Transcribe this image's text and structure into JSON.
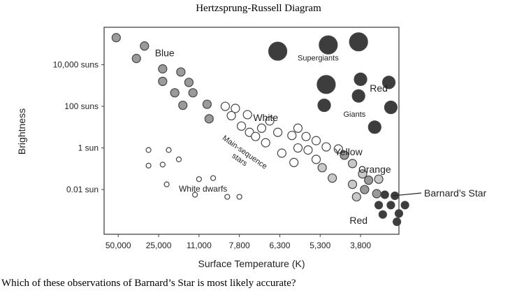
{
  "chart_data": {
    "type": "scatter",
    "title": "Hertzsprung-Russell Diagram",
    "xlabel": "Surface Temperature (K)",
    "ylabel": "Brightness",
    "x_ticks": [
      "50,000",
      "25,000",
      "11,000",
      "7,800",
      "6,300",
      "5,300",
      "3,800"
    ],
    "y_ticks": [
      "10,000 suns",
      "100 suns",
      "1 sun",
      "0.01 sun"
    ],
    "y_log_values": [
      4,
      2,
      0,
      -2
    ],
    "x_range_tick_index": [
      -0.35,
      6.95
    ],
    "y_range_log": [
      -4.15,
      5.8
    ],
    "grid": false,
    "shading_legend": {
      "white": "#ffffff",
      "light_gray": "#c8c8c8",
      "gray": "#9a9a9a",
      "dark": "#3d3d3d",
      "outline": "#444444"
    },
    "annotations": [
      {
        "text": "Blue",
        "tx": 1.15,
        "ly": 4.4,
        "size": 14
      },
      {
        "text": "Supergiants",
        "tx": 4.95,
        "ly": 4.2,
        "size": 11
      },
      {
        "text": "Red",
        "tx": 6.45,
        "ly": 2.7,
        "size": 14
      },
      {
        "text": "Giants",
        "tx": 5.85,
        "ly": 1.5,
        "size": 11
      },
      {
        "text": "White",
        "tx": 3.65,
        "ly": 1.3,
        "size": 14
      },
      {
        "text": "Yellow",
        "tx": 5.7,
        "ly": -0.35,
        "size": 14
      },
      {
        "text": "Orange",
        "tx": 6.35,
        "ly": -1.2,
        "size": 14
      },
      {
        "text": "White dwarfs",
        "tx": 2.1,
        "ly": -2.1,
        "size": 12
      },
      {
        "text": "Red",
        "tx": 5.95,
        "ly": -3.65,
        "size": 14
      }
    ],
    "rotated_annotations": [
      {
        "line1": "Main-sequence",
        "line2": "stars",
        "tx": 3.1,
        "ly": -0.3,
        "angle": 35,
        "size": 11
      }
    ],
    "callout": {
      "text": "Barnard’s Star",
      "target_tx": 6.7,
      "target_ly": -2.3
    },
    "series": [
      {
        "name": "Blue",
        "shade": "gray",
        "r": 6,
        "points": [
          [
            -0.05,
            5.3
          ],
          [
            0.65,
            4.9
          ],
          [
            0.45,
            4.3
          ],
          [
            1.1,
            3.8
          ],
          [
            1.55,
            3.65
          ],
          [
            1.1,
            3.2
          ],
          [
            1.75,
            3.15
          ],
          [
            1.4,
            2.65
          ],
          [
            1.85,
            2.65
          ],
          [
            1.6,
            2.05
          ],
          [
            2.2,
            2.1
          ],
          [
            2.25,
            1.4
          ]
        ]
      },
      {
        "name": "Main-sequence white",
        "shade": "white",
        "r": 6,
        "points": [
          [
            2.65,
            2.0
          ],
          [
            2.9,
            1.9
          ],
          [
            2.8,
            1.55
          ],
          [
            3.2,
            1.6
          ],
          [
            3.05,
            1.05
          ],
          [
            3.25,
            0.75
          ],
          [
            3.4,
            0.55
          ],
          [
            3.55,
            0.95
          ],
          [
            3.75,
            1.3
          ],
          [
            3.65,
            0.25
          ],
          [
            3.95,
            0.75
          ],
          [
            4.3,
            0.6
          ],
          [
            4.45,
            0.95
          ],
          [
            4.65,
            0.55
          ],
          [
            4.9,
            0.35
          ],
          [
            4.45,
            0.0
          ],
          [
            4.05,
            -0.25
          ],
          [
            4.35,
            -0.7
          ],
          [
            4.7,
            -0.1
          ],
          [
            5.15,
            0.05
          ],
          [
            5.45,
            -0.05
          ],
          [
            4.9,
            -0.55
          ]
        ]
      },
      {
        "name": "Yellow",
        "shade": "light_gray",
        "r": 6,
        "points": [
          [
            5.05,
            -0.95
          ],
          [
            5.3,
            -1.45
          ],
          [
            5.8,
            -0.75
          ],
          [
            5.8,
            -1.75
          ],
          [
            6.05,
            -1.25
          ],
          [
            5.9,
            -2.35
          ],
          [
            6.45,
            -1.5
          ]
        ]
      },
      {
        "name": "Orange",
        "shade": "gray",
        "r": 6,
        "points": [
          [
            5.6,
            -0.35
          ],
          [
            6.2,
            -1.55
          ],
          [
            6.1,
            -2.0
          ],
          [
            6.4,
            -2.2
          ]
        ]
      },
      {
        "name": "Red dwarfs",
        "shade": "dark",
        "r": 5.5,
        "points": [
          [
            6.6,
            -2.25
          ],
          [
            6.85,
            -2.3
          ],
          [
            6.45,
            -2.75
          ],
          [
            6.75,
            -2.75
          ],
          [
            7.1,
            -2.75
          ],
          [
            6.55,
            -3.2
          ],
          [
            6.95,
            -3.15
          ],
          [
            6.9,
            -3.55
          ]
        ]
      },
      {
        "name": "White dwarfs",
        "shade": "white",
        "r": 3.5,
        "points": [
          [
            0.75,
            -0.1
          ],
          [
            1.25,
            -0.1
          ],
          [
            0.75,
            -0.85
          ],
          [
            1.1,
            -0.8
          ],
          [
            1.5,
            -0.55
          ],
          [
            1.2,
            -1.75
          ],
          [
            2.0,
            -1.5
          ],
          [
            2.35,
            -1.45
          ],
          [
            1.9,
            -2.25
          ],
          [
            2.7,
            -2.35
          ],
          [
            3.0,
            -2.35
          ]
        ]
      },
      {
        "name": "Giants",
        "shade": "dark",
        "r": 9,
        "points": [
          [
            6.0,
            3.3
          ],
          [
            6.7,
            3.15
          ],
          [
            5.95,
            2.5
          ],
          [
            6.75,
            1.95
          ],
          [
            5.1,
            2.05
          ],
          [
            6.35,
            1.0
          ]
        ]
      },
      {
        "name": "Supergiants",
        "shade": "dark",
        "r": 13,
        "points": [
          [
            3.95,
            4.65
          ],
          [
            5.2,
            4.95
          ],
          [
            5.95,
            5.1
          ],
          [
            5.15,
            3.05
          ]
        ]
      }
    ]
  },
  "question": "Which of these observations of Barnard’s Star is most likely accurate?"
}
